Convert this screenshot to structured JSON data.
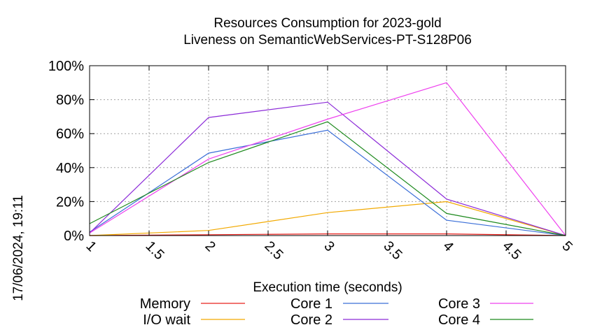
{
  "chart_data": {
    "type": "line",
    "title": "Resources Consumption for 2023-gold",
    "subtitle": "Liveness on SemanticWebServices-PT-S128P06",
    "xlabel": "Execution time (seconds)",
    "ylabel": "",
    "xlim": [
      1,
      5
    ],
    "ylim": [
      0,
      100
    ],
    "x_ticks": [
      "1",
      "1.5",
      "2",
      "2.5",
      "3",
      "3.5",
      "4",
      "4.5",
      "5"
    ],
    "y_ticks": [
      "0%",
      "20%",
      "40%",
      "60%",
      "80%",
      "100%"
    ],
    "grid": true,
    "legend_position": "bottom",
    "timestamp": "17/06/2024, 19:11",
    "series": [
      {
        "name": "Memory",
        "color": "#e8201c",
        "x": [
          1,
          2,
          3,
          4,
          5
        ],
        "y": [
          0,
          0.5,
          1,
          1,
          0
        ]
      },
      {
        "name": "I/O wait",
        "color": "#f2a900",
        "x": [
          1,
          2,
          3,
          4,
          5
        ],
        "y": [
          0,
          3,
          13.5,
          20,
          0
        ]
      },
      {
        "name": "Core 1",
        "color": "#3b6fd8",
        "x": [
          1,
          2,
          3,
          4,
          5
        ],
        "y": [
          2,
          48.5,
          62,
          9,
          0
        ]
      },
      {
        "name": "Core 2",
        "color": "#8c2bd8",
        "x": [
          1,
          2,
          3,
          4,
          5
        ],
        "y": [
          1.5,
          69.5,
          78.5,
          21.5,
          0
        ]
      },
      {
        "name": "Core 3",
        "color": "#ee40ee",
        "x": [
          1,
          2,
          3,
          4,
          5
        ],
        "y": [
          1.5,
          45,
          68.5,
          90,
          0
        ]
      },
      {
        "name": "Core 4",
        "color": "#1e8a1e",
        "x": [
          1,
          2,
          3,
          4,
          5
        ],
        "y": [
          7,
          43,
          67,
          13,
          0
        ]
      }
    ]
  }
}
